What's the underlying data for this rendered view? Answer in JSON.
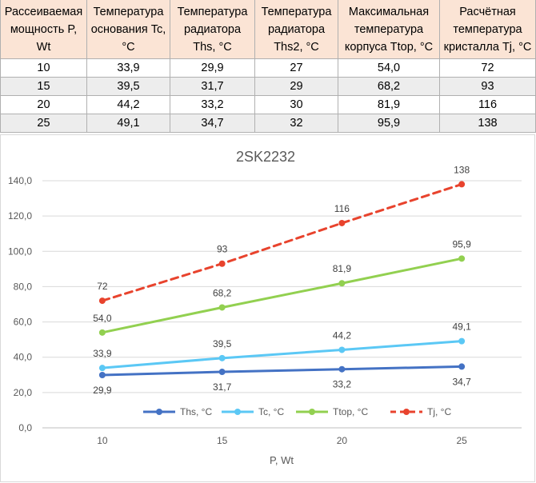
{
  "table": {
    "headers": [
      "Рассеиваемая мощность P, Wt",
      "Температура основания Tc, °C",
      "Температура радиатора Ths, °C",
      "Температура радиатора Ths2, °C",
      "Максимальная температура корпуса Ttop, °C",
      "Расчётная температура кристалла Tj, °C"
    ],
    "rows": [
      [
        "10",
        "33,9",
        "29,9",
        "27",
        "54,0",
        "72"
      ],
      [
        "15",
        "39,5",
        "31,7",
        "29",
        "68,2",
        "93"
      ],
      [
        "20",
        "44,2",
        "33,2",
        "30",
        "81,9",
        "116"
      ],
      [
        "25",
        "49,1",
        "34,7",
        "32",
        "95,9",
        "138"
      ]
    ]
  },
  "chart_data": {
    "type": "line",
    "title": "2SK2232",
    "xlabel": "P, Wt",
    "ylabel": "",
    "x": [
      10,
      15,
      20,
      25
    ],
    "x_tick_labels": [
      "10",
      "15",
      "20",
      "25"
    ],
    "ylim": [
      0,
      140
    ],
    "y_tick_labels": [
      "0,0",
      "20,0",
      "40,0",
      "60,0",
      "80,0",
      "100,0",
      "120,0",
      "140,0"
    ],
    "grid": true,
    "legend_position": "bottom-inside",
    "series": [
      {
        "name": "Ths, °C",
        "values": [
          29.9,
          31.7,
          33.2,
          34.7
        ],
        "labels": [
          "29,9",
          "31,7",
          "33,2",
          "34,7"
        ],
        "color": "#4472c4",
        "dashed": false,
        "label_side": "below"
      },
      {
        "name": "Tc, °C",
        "values": [
          33.9,
          39.5,
          44.2,
          49.1
        ],
        "labels": [
          "33,9",
          "39,5",
          "44,2",
          "49,1"
        ],
        "color": "#5bc8f5",
        "dashed": false,
        "label_side": "above"
      },
      {
        "name": "Ttop, °C",
        "values": [
          54.0,
          68.2,
          81.9,
          95.9
        ],
        "labels": [
          "54,0",
          "68,2",
          "81,9",
          "95,9"
        ],
        "color": "#92d050",
        "dashed": false,
        "label_side": "above"
      },
      {
        "name": "Tj, °C",
        "values": [
          72,
          93,
          116,
          138
        ],
        "labels": [
          "72",
          "93",
          "116",
          "138"
        ],
        "color": "#e8432d",
        "dashed": true,
        "label_side": "above"
      }
    ]
  }
}
